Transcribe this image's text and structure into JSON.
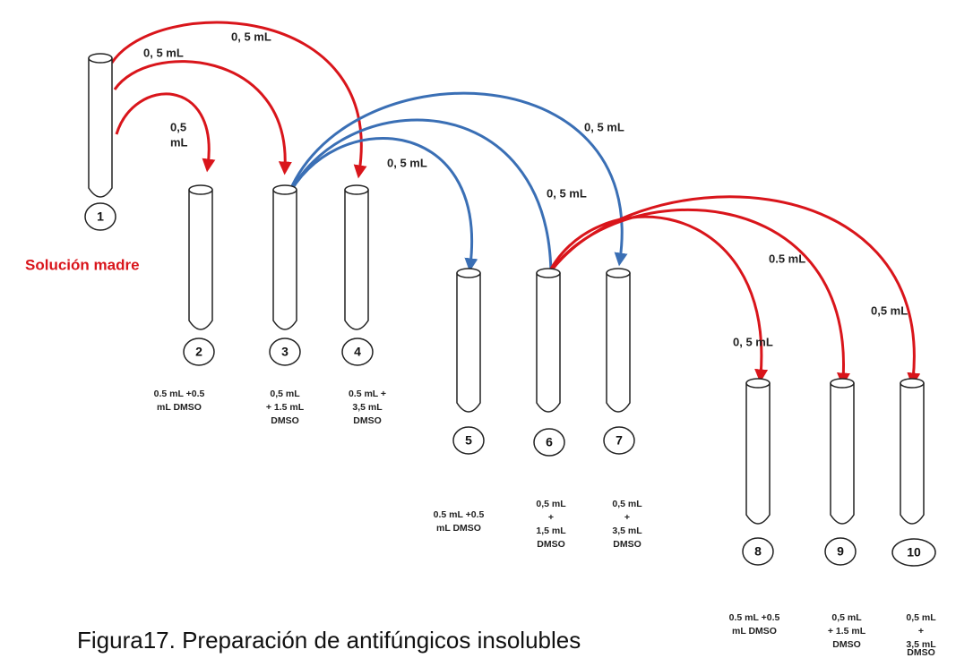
{
  "source_label": "Solución madre",
  "caption": "Figura17. Preparación de antifúngicos insolubles",
  "tubes": [
    {
      "number": "1",
      "contents": []
    },
    {
      "number": "2",
      "contents": [
        "0.5 mL +0.5",
        "mL DMSO"
      ]
    },
    {
      "number": "3",
      "contents": [
        "0,5 mL",
        "+ 1.5 mL",
        "DMSO"
      ]
    },
    {
      "number": "4",
      "contents": [
        "0.5  mL  +",
        "3,5      mL",
        "DMSO"
      ]
    },
    {
      "number": "5",
      "contents": [
        "0.5 mL +0.5",
        "mL DMSO"
      ]
    },
    {
      "number": "6",
      "contents": [
        "0,5 mL",
        "+",
        "1,5 mL",
        "DMSO"
      ]
    },
    {
      "number": "7",
      "contents": [
        "0,5 mL",
        "+",
        "3,5 mL",
        "DMSO"
      ]
    },
    {
      "number": "8",
      "contents": [
        "0.5 mL +0.5",
        "mL DMSO"
      ]
    },
    {
      "number": "9",
      "contents": [
        "0,5 mL",
        "+ 1.5 mL",
        "DMSO"
      ]
    },
    {
      "number": "10",
      "contents": [
        "0,5 mL",
        "+",
        "3,5 mL",
        "DMSO"
      ]
    }
  ],
  "arrows": [
    {
      "label": [
        "0,5",
        "mL"
      ]
    },
    {
      "label": [
        "0, 5  mL"
      ]
    },
    {
      "label": [
        "0, 5  mL"
      ]
    },
    {
      "label": [
        "0, 5  mL"
      ]
    },
    {
      "label": [
        "0, 5  mL"
      ]
    },
    {
      "label": [
        "0, 5  mL"
      ]
    },
    {
      "label": [
        "0, 5      mL"
      ]
    },
    {
      "label": [
        "0.5 mL"
      ]
    },
    {
      "label": [
        "0,5      mL"
      ]
    }
  ]
}
